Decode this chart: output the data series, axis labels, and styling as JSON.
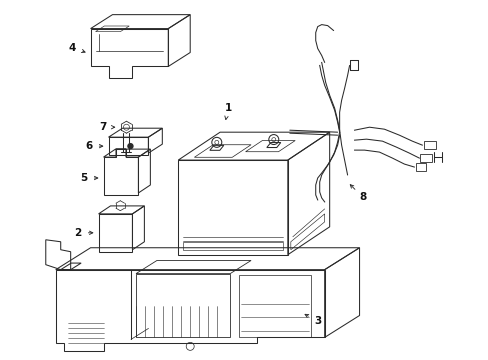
{
  "bg_color": "#ffffff",
  "line_color": "#2a2a2a",
  "label_color": "#111111",
  "figsize": [
    4.89,
    3.6
  ],
  "dpi": 100,
  "lw": 0.75
}
